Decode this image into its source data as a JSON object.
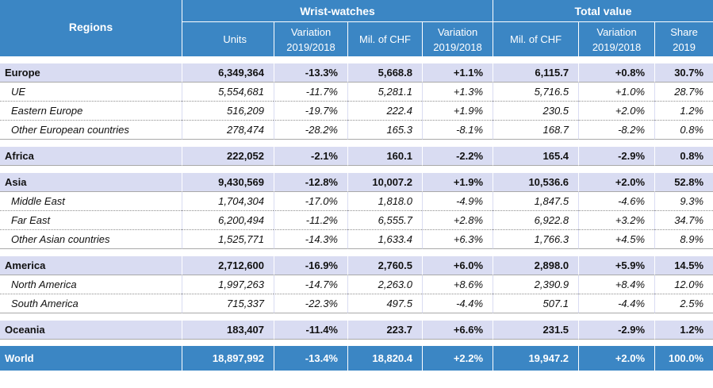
{
  "header": {
    "regions": "Regions",
    "wrist_watches": "Wrist-watches",
    "total_value": "Total value",
    "units": "Units",
    "variation_1": "Variation",
    "variation_1b": "2019/2018",
    "mil_chf_1": "Mil. of CHF",
    "variation_2": "Variation",
    "variation_2b": "2019/2018",
    "mil_chf_2": "Mil. of CHF",
    "variation_3": "Variation",
    "variation_3b": "2019/2018",
    "share": "Share",
    "share_b": "2019"
  },
  "rows": [
    {
      "name": "Europe",
      "units": "6,349,364",
      "var1": "-13.3%",
      "chf": "5,668.8",
      "var2": "+1.1%",
      "total": "6,115.7",
      "var3": "+0.8%",
      "share": "30.7%"
    },
    {
      "name": "UE",
      "units": "5,554,681",
      "var1": "-11.7%",
      "chf": "5,281.1",
      "var2": "+1.3%",
      "total": "5,716.5",
      "var3": "+1.0%",
      "share": "28.7%"
    },
    {
      "name": "Eastern Europe",
      "units": "516,209",
      "var1": "-19.7%",
      "chf": "222.4",
      "var2": "+1.9%",
      "total": "230.5",
      "var3": "+2.0%",
      "share": "1.2%"
    },
    {
      "name": "Other European countries",
      "units": "278,474",
      "var1": "-28.2%",
      "chf": "165.3",
      "var2": "-8.1%",
      "total": "168.7",
      "var3": "-8.2%",
      "share": "0.8%"
    },
    {
      "name": "Africa",
      "units": "222,052",
      "var1": "-2.1%",
      "chf": "160.1",
      "var2": "-2.2%",
      "total": "165.4",
      "var3": "-2.9%",
      "share": "0.8%"
    },
    {
      "name": "Asia",
      "units": "9,430,569",
      "var1": "-12.8%",
      "chf": "10,007.2",
      "var2": "+1.9%",
      "total": "10,536.6",
      "var3": "+2.0%",
      "share": "52.8%"
    },
    {
      "name": "Middle East",
      "units": "1,704,304",
      "var1": "-17.0%",
      "chf": "1,818.0",
      "var2": "-4.9%",
      "total": "1,847.5",
      "var3": "-4.6%",
      "share": "9.3%"
    },
    {
      "name": "Far East",
      "units": "6,200,494",
      "var1": "-11.2%",
      "chf": "6,555.7",
      "var2": "+2.8%",
      "total": "6,922.8",
      "var3": "+3.2%",
      "share": "34.7%"
    },
    {
      "name": "Other Asian countries",
      "units": "1,525,771",
      "var1": "-14.3%",
      "chf": "1,633.4",
      "var2": "+6.3%",
      "total": "1,766.3",
      "var3": "+4.5%",
      "share": "8.9%"
    },
    {
      "name": "America",
      "units": "2,712,600",
      "var1": "-16.9%",
      "chf": "2,760.5",
      "var2": "+6.0%",
      "total": "2,898.0",
      "var3": "+5.9%",
      "share": "14.5%"
    },
    {
      "name": "North America",
      "units": "1,997,263",
      "var1": "-14.7%",
      "chf": "2,263.0",
      "var2": "+8.6%",
      "total": "2,390.9",
      "var3": "+8.4%",
      "share": "12.0%"
    },
    {
      "name": "South America",
      "units": "715,337",
      "var1": "-22.3%",
      "chf": "497.5",
      "var2": "-4.4%",
      "total": "507.1",
      "var3": "-4.4%",
      "share": "2.5%"
    },
    {
      "name": "Oceania",
      "units": "183,407",
      "var1": "-11.4%",
      "chf": "223.7",
      "var2": "+6.6%",
      "total": "231.5",
      "var3": "-2.9%",
      "share": "1.2%"
    },
    {
      "name": "World",
      "units": "18,897,992",
      "var1": "-13.4%",
      "chf": "18,820.4",
      "var2": "+2.2%",
      "total": "19,947.2",
      "var3": "+2.0%",
      "share": "100.0%"
    }
  ]
}
